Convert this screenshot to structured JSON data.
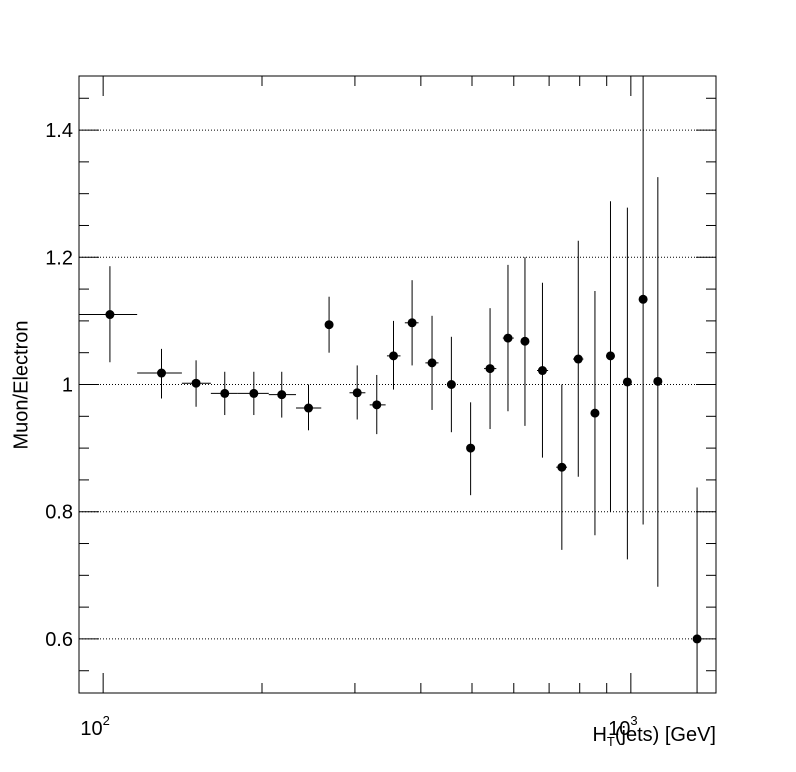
{
  "chart_data": {
    "type": "scatter",
    "title": "",
    "xlabel_prefix": "H",
    "xlabel_sub": "T",
    "xlabel_suffix": "(jets) [GeV]",
    "ylabel": "Muon/Electron",
    "xscale": "log",
    "xlim": [
      90,
      1450
    ],
    "ylim": [
      0.515,
      1.485
    ],
    "yticks": [
      0.6,
      0.8,
      1.0,
      1.2,
      1.4
    ],
    "ytick_labels": [
      "0.6",
      "0.8",
      "1",
      "1.2",
      "1.4"
    ],
    "xtick_labels": [
      {
        "value": 100,
        "base": "10",
        "exp": "2"
      },
      {
        "value": 1000,
        "base": "10",
        "exp": "3"
      }
    ],
    "grid": "horizontal-dotted",
    "points": [
      {
        "x": 103,
        "xlo": 90,
        "xhi": 116,
        "y": 1.11,
        "ylo": 1.035,
        "yhi": 1.186
      },
      {
        "x": 129,
        "xlo": 116,
        "xhi": 141,
        "y": 1.018,
        "ylo": 0.978,
        "yhi": 1.056
      },
      {
        "x": 150,
        "xlo": 141,
        "xhi": 160,
        "y": 1.002,
        "ylo": 0.965,
        "yhi": 1.038
      },
      {
        "x": 170,
        "xlo": 160,
        "xhi": 180,
        "y": 0.986,
        "ylo": 0.952,
        "yhi": 1.02
      },
      {
        "x": 193,
        "xlo": 180,
        "xhi": 206,
        "y": 0.986,
        "ylo": 0.952,
        "yhi": 1.02
      },
      {
        "x": 218,
        "xlo": 206,
        "xhi": 232,
        "y": 0.984,
        "ylo": 0.948,
        "yhi": 1.02
      },
      {
        "x": 245,
        "xlo": 232,
        "xhi": 259,
        "y": 0.963,
        "ylo": 0.928,
        "yhi": 1.0
      },
      {
        "x": 268,
        "y": 1.094,
        "ylo": 1.05,
        "yhi": 1.138
      },
      {
        "x": 303,
        "xlo": 293,
        "xhi": 314,
        "y": 0.987,
        "ylo": 0.945,
        "yhi": 1.03
      },
      {
        "x": 330,
        "xlo": 320,
        "xhi": 343,
        "y": 0.968,
        "ylo": 0.922,
        "yhi": 1.015
      },
      {
        "x": 355,
        "xlo": 345,
        "xhi": 366,
        "y": 1.045,
        "ylo": 0.992,
        "yhi": 1.1
      },
      {
        "x": 385,
        "xlo": 373,
        "xhi": 396,
        "y": 1.097,
        "ylo": 1.03,
        "yhi": 1.164
      },
      {
        "x": 420,
        "xlo": 408,
        "xhi": 432,
        "y": 1.034,
        "ylo": 0.96,
        "yhi": 1.108
      },
      {
        "x": 457,
        "y": 1.0,
        "ylo": 0.925,
        "yhi": 1.075
      },
      {
        "x": 497,
        "y": 0.9,
        "ylo": 0.826,
        "yhi": 0.972
      },
      {
        "x": 541,
        "xlo": 527,
        "xhi": 556,
        "y": 1.025,
        "ylo": 0.93,
        "yhi": 1.12
      },
      {
        "x": 585,
        "xlo": 572,
        "xhi": 600,
        "y": 1.073,
        "ylo": 0.958,
        "yhi": 1.188
      },
      {
        "x": 630,
        "y": 1.068,
        "ylo": 0.935,
        "yhi": 1.2
      },
      {
        "x": 680,
        "xlo": 664,
        "xhi": 697,
        "y": 1.022,
        "ylo": 0.885,
        "yhi": 1.16
      },
      {
        "x": 740,
        "xlo": 722,
        "xhi": 757,
        "y": 0.87,
        "ylo": 0.74,
        "yhi": 1.0
      },
      {
        "x": 795,
        "xlo": 777,
        "xhi": 813,
        "y": 1.04,
        "ylo": 0.855,
        "yhi": 1.226
      },
      {
        "x": 855,
        "y": 0.955,
        "ylo": 0.763,
        "yhi": 1.147
      },
      {
        "x": 915,
        "xlo": 898,
        "xhi": 932,
        "y": 1.045,
        "ylo": 0.8,
        "yhi": 1.288
      },
      {
        "x": 985,
        "y": 1.004,
        "ylo": 0.725,
        "yhi": 1.278
      },
      {
        "x": 1055,
        "y": 1.134,
        "ylo": 0.78,
        "yhi": 1.485
      },
      {
        "x": 1125,
        "xlo": 1105,
        "xhi": 1145,
        "y": 1.005,
        "ylo": 0.682,
        "yhi": 1.326
      },
      {
        "x": 1335,
        "y": 0.6,
        "ylo": 0.515,
        "yhi": 0.838
      }
    ]
  }
}
